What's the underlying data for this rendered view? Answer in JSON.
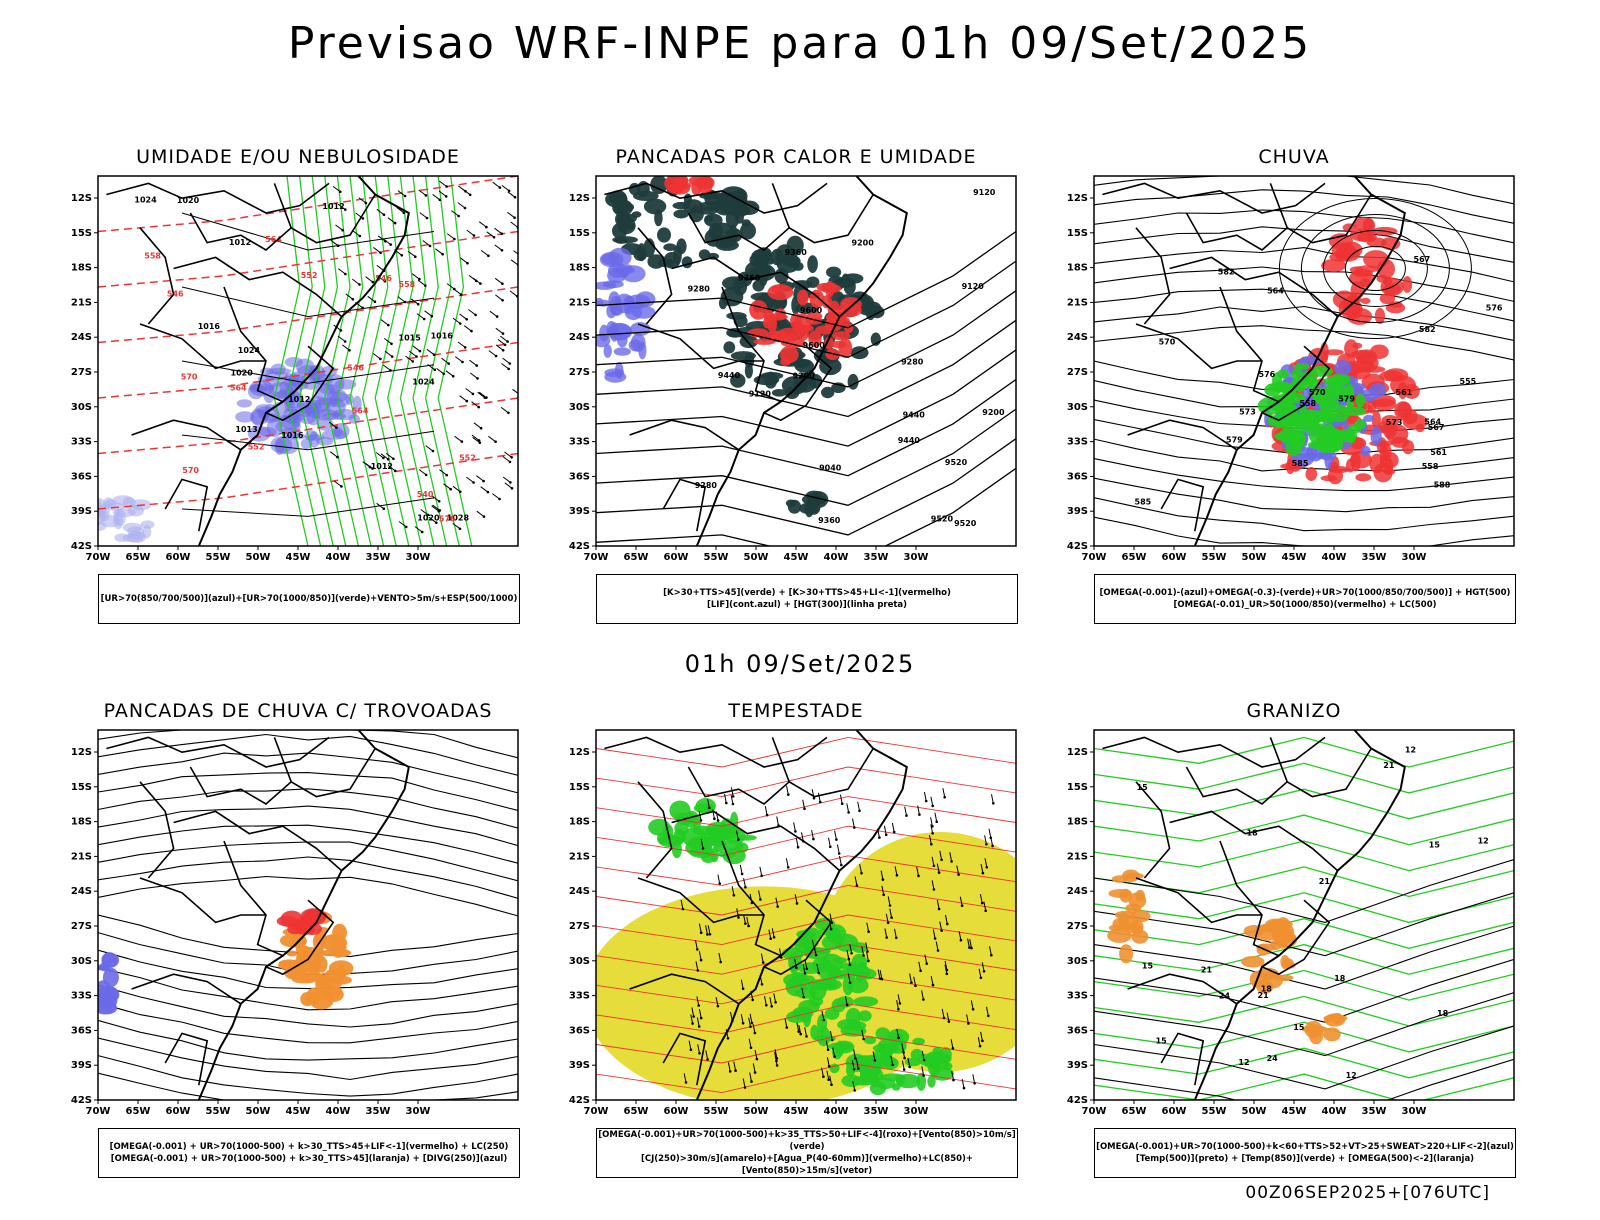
{
  "page": {
    "main_title": "Previsao WRF-INPE  para 01h 09/Set/2025",
    "mid_title": "01h 09/Set/2025",
    "footer_code": "00Z06SEP2025+[076UTC]"
  },
  "colors": {
    "blue": "#6a6ae8",
    "blue_light": "#aeb0f0",
    "green": "#22cc22",
    "red": "#ee3333",
    "dark_teal": "#1f3c3c",
    "orange": "#f09030",
    "yellow": "#e6dc3a",
    "black": "#000000"
  },
  "axes": {
    "x_ticks": [
      "70W",
      "65W",
      "60W",
      "55W",
      "50W",
      "45W",
      "40W",
      "35W",
      "30W"
    ],
    "y_ticks": [
      "12S",
      "15S",
      "18S",
      "21S",
      "24S",
      "27S",
      "30S",
      "33S",
      "36S",
      "39S",
      "42S"
    ]
  },
  "chart_data": [
    {
      "type": "map",
      "title": "UMIDADE E/OU NEBULOSIDADE",
      "legend": [
        "[UR>70(850/700/500)](azul)+[UR>70(1000/850)](verde)+VENTO>5m/s+ESP(500/1000)"
      ],
      "contour_labels": [
        "1012",
        "1016",
        "1020",
        "1024",
        "1028",
        "1012",
        "1016",
        "1020",
        "1013",
        "1015",
        "1016",
        "1012",
        "1024",
        "1020",
        "1024",
        "1012"
      ],
      "red_labels": [
        "576",
        "570",
        "564",
        "558",
        "552",
        "546",
        "570",
        "564",
        "558",
        "552",
        "546",
        "540",
        "552",
        "564",
        "546"
      ]
    },
    {
      "type": "map",
      "title": "PANCADAS POR CALOR E UMIDADE",
      "legend": [
        "[K>30+TTS>45](verde) + [K>30+TTS>45+LI<-1](vermelho)",
        "[LIF](cont.azul) + [HGT(300)](linha preta)"
      ],
      "contour_labels": [
        "9600",
        "9520",
        "9440",
        "9360",
        "9280",
        "9200",
        "9120",
        "9600",
        "9520",
        "9440",
        "9360",
        "9280",
        "9200",
        "9120",
        "9520",
        "9440",
        "9360",
        "9280",
        "9200",
        "9120",
        "9040"
      ]
    },
    {
      "type": "map",
      "title": "CHUVA",
      "legend": [
        "[OMEGA(-0.001)-(azul)+OMEGA(-0.3)-(verde)+UR>70(1000/850/700/500)] + HGT(500)",
        "[OMEGA(-0.01)_UR>50(1000/850)(vermelho) + LC(500)"
      ],
      "contour_labels": [
        "588",
        "585",
        "582",
        "579",
        "576",
        "573",
        "570",
        "567",
        "564",
        "561",
        "558",
        "555",
        "579",
        "576",
        "573",
        "570",
        "567",
        "564",
        "561",
        "558",
        "585",
        "582"
      ]
    },
    {
      "type": "map",
      "title": "PANCADAS DE CHUVA C/ TROVOADAS",
      "legend": [
        "[OMEGA(-0.001) + UR>70(1000-500) + k>30_TTS>45+LIF<-1](vermelho) + LC(250)",
        "[OMEGA(-0.001) + UR>70(1000-500) + k>30_TTS>45](laranja) + [DIVG(250)](azul)"
      ],
      "contour_labels": []
    },
    {
      "type": "map",
      "title": "TEMPESTADE",
      "legend": [
        "[OMEGA(-0.001)+UR>70(1000-500)+k>35_TTS>50+LIF<-4](roxo)+[Vento(850)>10m/s](verde)",
        "[CJ(250)>30m/s](amarelo)+[Agua_P(40-60mm)](vermelho)+LC(850)+[Vento(850)>15m/s](vetor)"
      ],
      "contour_labels": []
    },
    {
      "type": "map",
      "title": "GRANIZO",
      "legend": [
        "[OMEGA(-0.001)+UR>70(1000-500)+k<60+TTS>52+VT>25+SWEAT>220+LIF<-2](azul)",
        "[Temp(500)](preto) + [Temp(850)](verde) + [OMEGA(500)<-2](laranja)"
      ],
      "contour_labels": [
        "12",
        "12",
        "12",
        "15",
        "15",
        "15",
        "18",
        "18",
        "21",
        "21",
        "24",
        "12",
        "15",
        "18",
        "21",
        "24",
        "15",
        "18",
        "21"
      ]
    }
  ]
}
